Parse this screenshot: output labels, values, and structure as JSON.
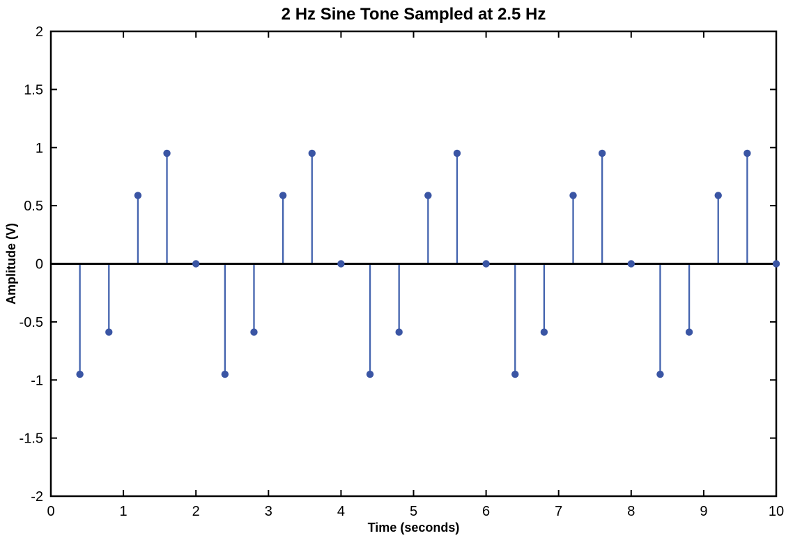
{
  "chart_data": {
    "type": "stem",
    "title": "2 Hz Sine Tone Sampled at 2.5 Hz",
    "xlabel": "Time (seconds)",
    "ylabel": "Amplitude (V)",
    "xlim": [
      0,
      10
    ],
    "ylim": [
      -2,
      2
    ],
    "xticks": [
      0,
      1,
      2,
      3,
      4,
      5,
      6,
      7,
      8,
      9,
      10
    ],
    "xtick_labels": [
      "0",
      "1",
      "2",
      "3",
      "4",
      "5",
      "6",
      "7",
      "8",
      "9",
      "10"
    ],
    "yticks": [
      -2,
      -1.5,
      -1,
      -0.5,
      0,
      0.5,
      1,
      1.5,
      2
    ],
    "ytick_labels": [
      "-2",
      "-1.5",
      "-1",
      "-0.5",
      "0",
      "0.5",
      "1",
      "1.5",
      "2"
    ],
    "grid": false,
    "legend": null,
    "baseline_y": 0,
    "x": [
      0.4,
      0.8,
      1.2,
      1.6,
      2.0,
      2.4,
      2.8,
      3.2,
      3.6,
      4.0,
      4.4,
      4.8,
      5.2,
      5.6,
      6.0,
      6.4,
      6.8,
      7.2,
      7.6,
      8.0,
      8.4,
      8.8,
      9.2,
      9.6,
      10.0
    ],
    "values": [
      -0.951,
      -0.588,
      0.588,
      0.951,
      0,
      -0.951,
      -0.588,
      0.588,
      0.951,
      0,
      -0.951,
      -0.588,
      0.588,
      0.951,
      0,
      -0.951,
      -0.588,
      0.588,
      0.951,
      0,
      -0.951,
      -0.588,
      0.588,
      0.951,
      0
    ],
    "stem_color": "#4363AE",
    "marker_color": "#3A55A4",
    "baseline_color": "#000000",
    "axis_color": "#000000"
  }
}
